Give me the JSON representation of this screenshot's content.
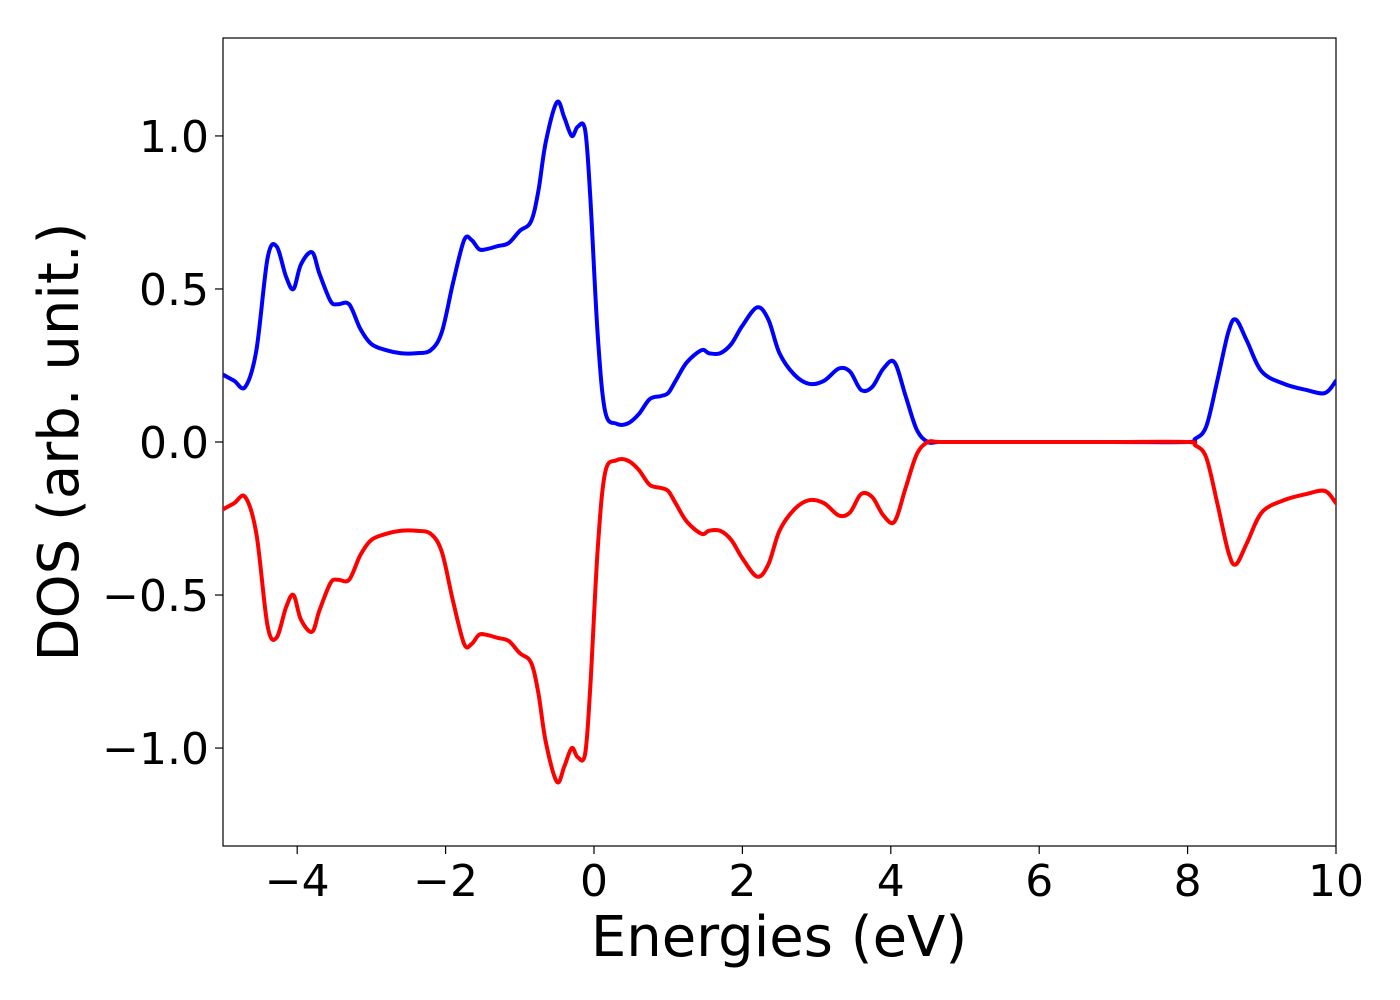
{
  "chart_data": {
    "type": "line",
    "title": "",
    "xlabel": "Energies (eV)",
    "ylabel": "DOS (arb. unit.)",
    "xlim": [
      -5,
      10
    ],
    "ylim": [
      -1.32,
      1.32
    ],
    "grid": false,
    "legend": "none",
    "x_ticks": [
      -4,
      -2,
      0,
      2,
      4,
      6,
      8,
      10
    ],
    "x_tick_labels": [
      "−4",
      "−2",
      "0",
      "2",
      "4",
      "6",
      "8",
      "10"
    ],
    "y_ticks": [
      1.0,
      0.5,
      0.0,
      -0.5,
      -1.0
    ],
    "y_tick_labels": [
      "1.0",
      "0.5",
      "0.0",
      "−0.5",
      "−1.0"
    ],
    "series": [
      {
        "color": "#0000ff",
        "x": [
          -5.0,
          -4.85,
          -4.7,
          -4.55,
          -4.4,
          -4.28,
          -4.15,
          -4.05,
          -3.95,
          -3.8,
          -3.7,
          -3.55,
          -3.45,
          -3.3,
          -3.15,
          -3.0,
          -2.8,
          -2.6,
          -2.4,
          -2.2,
          -2.05,
          -1.9,
          -1.75,
          -1.65,
          -1.55,
          -1.45,
          -1.3,
          -1.15,
          -1.0,
          -0.85,
          -0.75,
          -0.65,
          -0.5,
          -0.4,
          -0.3,
          -0.22,
          -0.12,
          -0.05,
          0.05,
          0.15,
          0.3,
          0.45,
          0.6,
          0.75,
          0.9,
          1.0,
          1.1,
          1.25,
          1.45,
          1.55,
          1.7,
          1.85,
          2.0,
          2.2,
          2.35,
          2.5,
          2.7,
          2.9,
          3.1,
          3.3,
          3.45,
          3.6,
          3.75,
          3.9,
          4.05,
          4.2,
          4.35,
          4.5,
          4.65,
          5.0,
          6.0,
          7.0,
          8.0,
          8.1,
          8.25,
          8.4,
          8.55,
          8.65,
          8.8,
          9.0,
          9.3,
          9.6,
          9.85,
          10.0
        ],
        "values": [
          0.22,
          0.2,
          0.18,
          0.3,
          0.6,
          0.64,
          0.54,
          0.5,
          0.58,
          0.62,
          0.55,
          0.46,
          0.45,
          0.45,
          0.37,
          0.32,
          0.3,
          0.29,
          0.29,
          0.3,
          0.36,
          0.52,
          0.66,
          0.66,
          0.63,
          0.63,
          0.64,
          0.65,
          0.69,
          0.72,
          0.82,
          0.98,
          1.11,
          1.06,
          1.0,
          1.03,
          1.02,
          0.8,
          0.35,
          0.1,
          0.06,
          0.06,
          0.09,
          0.14,
          0.15,
          0.16,
          0.2,
          0.26,
          0.3,
          0.29,
          0.29,
          0.32,
          0.38,
          0.44,
          0.4,
          0.29,
          0.22,
          0.19,
          0.2,
          0.24,
          0.23,
          0.17,
          0.18,
          0.24,
          0.26,
          0.15,
          0.04,
          0.0,
          0.0,
          0.0,
          0.0,
          0.0,
          0.0,
          0.01,
          0.05,
          0.2,
          0.36,
          0.4,
          0.33,
          0.23,
          0.19,
          0.17,
          0.16,
          0.2
        ]
      },
      {
        "color": "#ff0000",
        "x": [
          -5.0,
          -4.85,
          -4.7,
          -4.55,
          -4.4,
          -4.28,
          -4.15,
          -4.05,
          -3.95,
          -3.8,
          -3.7,
          -3.55,
          -3.45,
          -3.3,
          -3.15,
          -3.0,
          -2.8,
          -2.6,
          -2.4,
          -2.2,
          -2.05,
          -1.9,
          -1.75,
          -1.65,
          -1.55,
          -1.45,
          -1.3,
          -1.15,
          -1.0,
          -0.85,
          -0.75,
          -0.65,
          -0.5,
          -0.4,
          -0.3,
          -0.22,
          -0.12,
          -0.05,
          0.05,
          0.15,
          0.3,
          0.45,
          0.6,
          0.75,
          0.9,
          1.0,
          1.1,
          1.25,
          1.45,
          1.55,
          1.7,
          1.85,
          2.0,
          2.2,
          2.35,
          2.5,
          2.7,
          2.9,
          3.1,
          3.3,
          3.45,
          3.6,
          3.75,
          3.9,
          4.05,
          4.2,
          4.35,
          4.5,
          4.65,
          5.0,
          6.0,
          7.0,
          8.0,
          8.1,
          8.25,
          8.4,
          8.55,
          8.65,
          8.8,
          9.0,
          9.3,
          9.6,
          9.85,
          10.0
        ],
        "values": [
          -0.22,
          -0.2,
          -0.18,
          -0.3,
          -0.6,
          -0.64,
          -0.54,
          -0.5,
          -0.58,
          -0.62,
          -0.55,
          -0.46,
          -0.45,
          -0.45,
          -0.37,
          -0.32,
          -0.3,
          -0.29,
          -0.29,
          -0.3,
          -0.36,
          -0.52,
          -0.66,
          -0.66,
          -0.63,
          -0.63,
          -0.64,
          -0.65,
          -0.69,
          -0.72,
          -0.82,
          -0.98,
          -1.11,
          -1.06,
          -1.0,
          -1.03,
          -1.02,
          -0.8,
          -0.35,
          -0.1,
          -0.06,
          -0.06,
          -0.09,
          -0.14,
          -0.15,
          -0.16,
          -0.2,
          -0.26,
          -0.3,
          -0.29,
          -0.29,
          -0.32,
          -0.38,
          -0.44,
          -0.4,
          -0.29,
          -0.22,
          -0.19,
          -0.2,
          -0.24,
          -0.23,
          -0.17,
          -0.18,
          -0.24,
          -0.26,
          -0.15,
          -0.04,
          0.0,
          0.0,
          0.0,
          0.0,
          0.0,
          0.0,
          -0.01,
          -0.05,
          -0.2,
          -0.36,
          -0.4,
          -0.33,
          -0.23,
          -0.19,
          -0.17,
          -0.16,
          -0.2
        ]
      }
    ]
  }
}
